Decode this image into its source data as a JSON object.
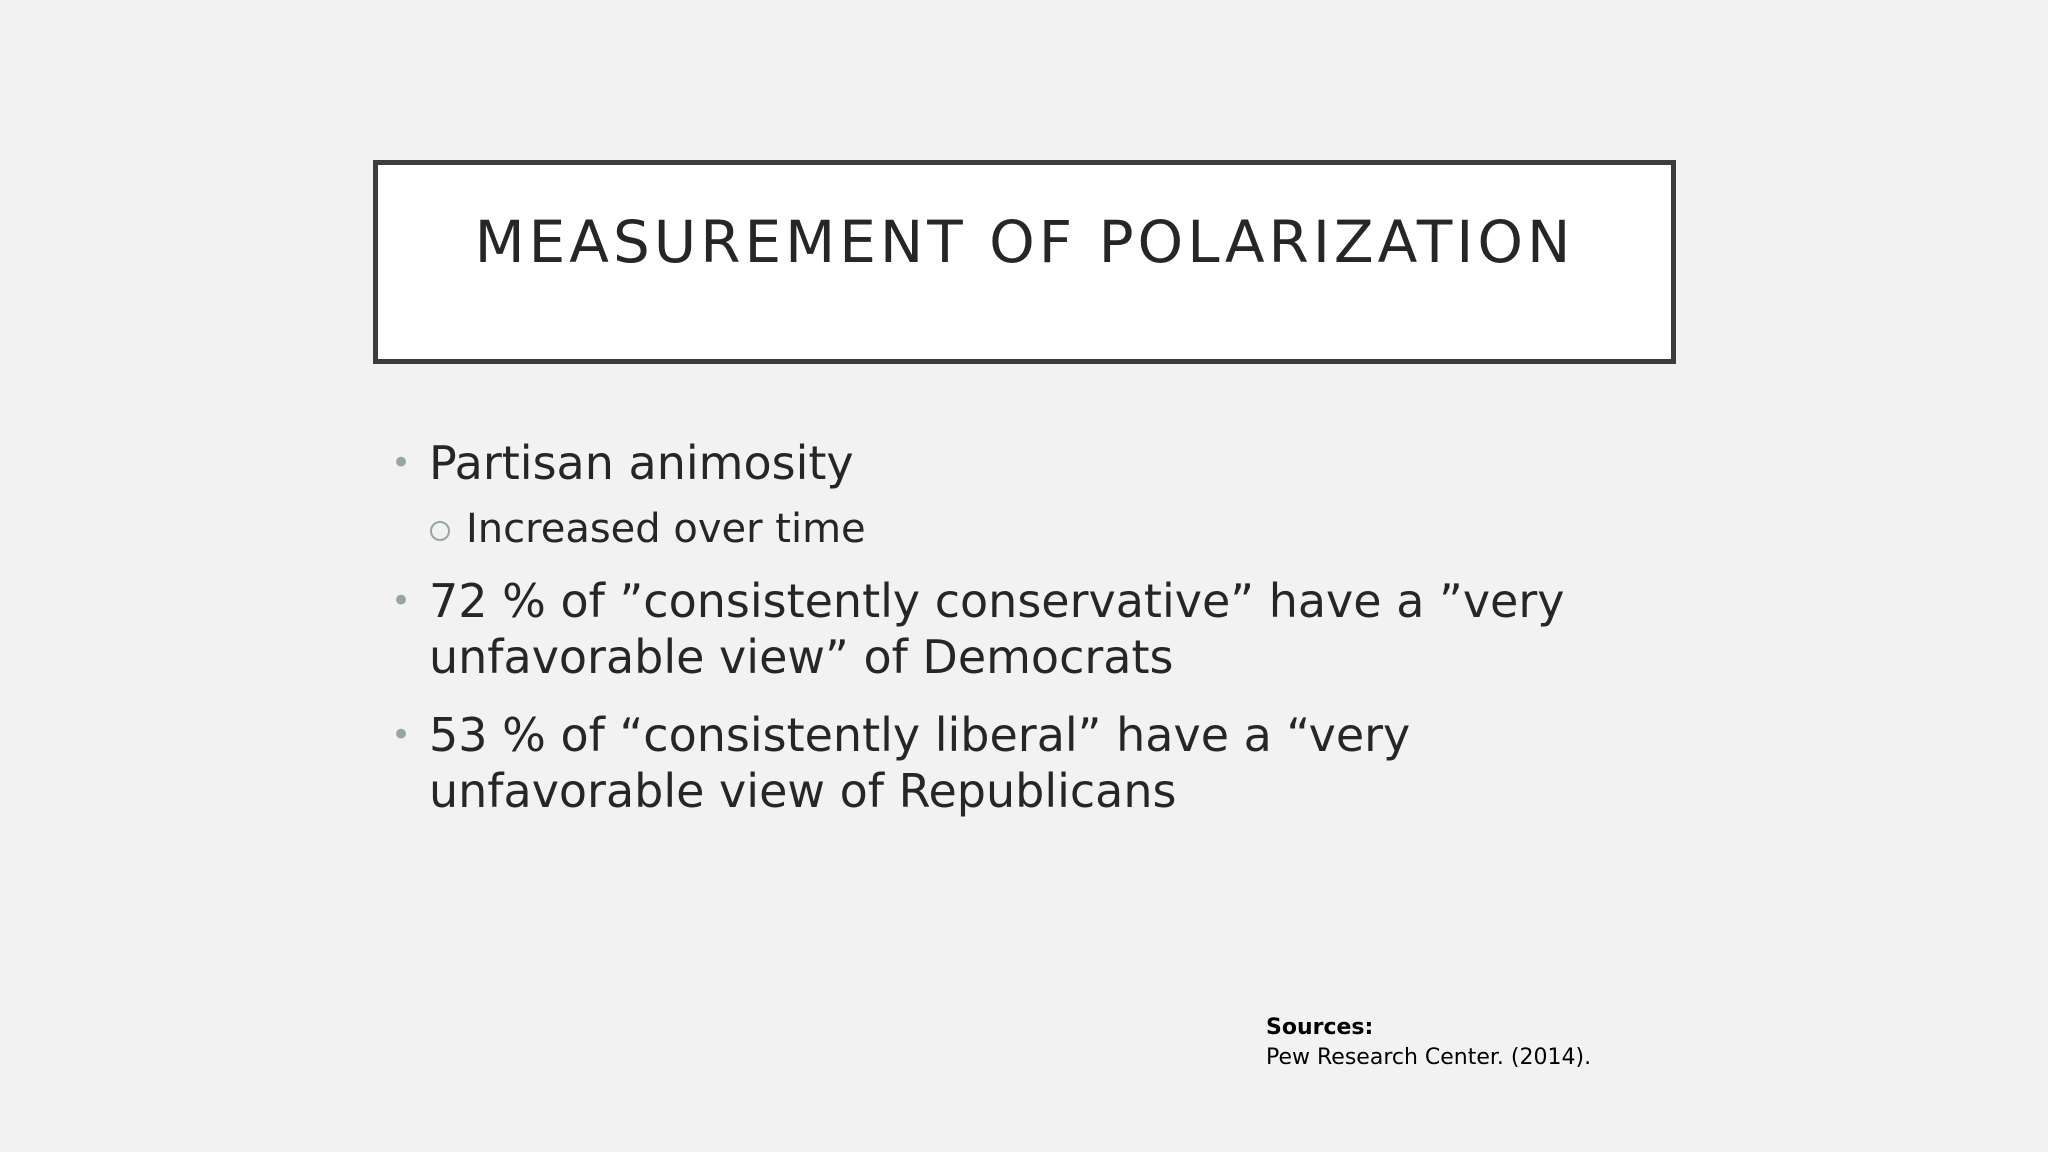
{
  "slide": {
    "title": "MEASUREMENT OF POLARIZATION",
    "bullets": [
      {
        "text": "Partisan animosity",
        "sub": [
          "Increased over time"
        ]
      },
      {
        "text": "72 % of ”consistently conservative” have a ”very unfavorable view” of Democrats",
        "sub": []
      },
      {
        "text": "53 % of “consistently liberal” have a “very unfavorable view of Republicans",
        "sub": []
      }
    ],
    "sources": {
      "label": "Sources:",
      "citation": "Pew Research Center. (2014)."
    }
  },
  "colors": {
    "background": "#f2f2f3",
    "title_border": "#3d3d3d",
    "bullet_marker": "#98a5a5",
    "text": "#262626"
  }
}
